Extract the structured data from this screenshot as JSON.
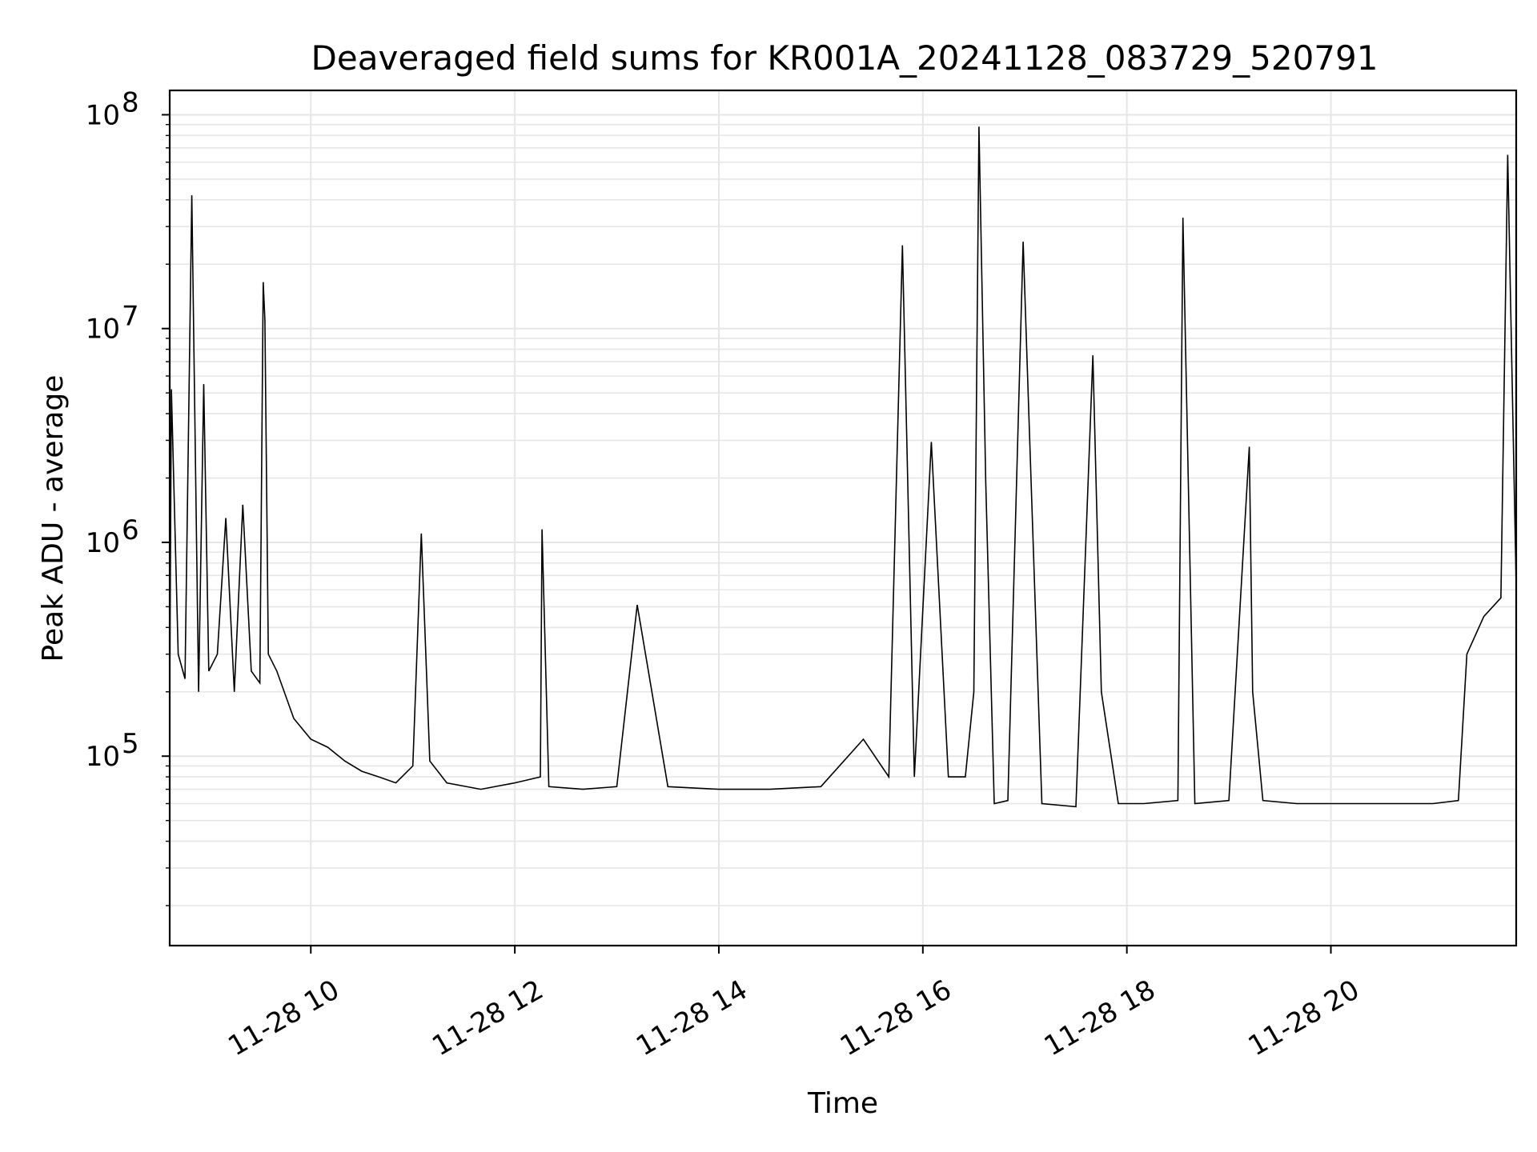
{
  "chart_data": {
    "type": "line",
    "title": "Deaveraged field sums for KR001A_20241128_083729_520791",
    "xlabel": "Time",
    "ylabel": "Peak ADU - average",
    "yscale": "log",
    "ylim": [
      13000,
      130000000
    ],
    "xlim": [
      "2024-11-28 08:37",
      "2024-11-28 21:49"
    ],
    "x_tick_labels": [
      "11-28 10",
      "11-28 12",
      "11-28 14",
      "11-28 16",
      "11-28 18",
      "11-28 20"
    ],
    "x_tick_times": [
      "2024-11-28 10:00",
      "2024-11-28 12:00",
      "2024-11-28 14:00",
      "2024-11-28 16:00",
      "2024-11-28 18:00",
      "2024-11-28 20:00"
    ],
    "y_tick_labels": [
      {
        "base": "10",
        "exp": "5",
        "value": 100000
      },
      {
        "base": "10",
        "exp": "6",
        "value": 1000000
      },
      {
        "base": "10",
        "exp": "7",
        "value": 10000000
      },
      {
        "base": "10",
        "exp": "8",
        "value": 100000000
      }
    ],
    "grid": true,
    "line_color": "#000000",
    "series": [
      {
        "x": [
          "2024-11-28 08:37",
          "2024-11-28 08:38",
          "2024-11-28 08:42",
          "2024-11-28 08:46",
          "2024-11-28 08:50",
          "2024-11-28 08:54",
          "2024-11-28 08:57",
          "2024-11-28 09:00",
          "2024-11-28 09:05",
          "2024-11-28 09:10",
          "2024-11-28 09:15",
          "2024-11-28 09:20",
          "2024-11-28 09:25",
          "2024-11-28 09:30",
          "2024-11-28 09:32",
          "2024-11-28 09:33",
          "2024-11-28 09:35",
          "2024-11-28 09:40",
          "2024-11-28 09:50",
          "2024-11-28 10:00",
          "2024-11-28 10:10",
          "2024-11-28 10:20",
          "2024-11-28 10:30",
          "2024-11-28 10:40",
          "2024-11-28 10:50",
          "2024-11-28 11:00",
          "2024-11-28 11:05",
          "2024-11-28 11:10",
          "2024-11-28 11:20",
          "2024-11-28 11:40",
          "2024-11-28 12:00",
          "2024-11-28 12:15",
          "2024-11-28 12:16",
          "2024-11-28 12:20",
          "2024-11-28 12:40",
          "2024-11-28 13:00",
          "2024-11-28 13:12",
          "2024-11-28 13:30",
          "2024-11-28 14:00",
          "2024-11-28 14:30",
          "2024-11-28 15:00",
          "2024-11-28 15:25",
          "2024-11-28 15:40",
          "2024-11-28 15:48",
          "2024-11-28 15:55",
          "2024-11-28 16:05",
          "2024-11-28 16:15",
          "2024-11-28 16:25",
          "2024-11-28 16:30",
          "2024-11-28 16:33",
          "2024-11-28 16:37",
          "2024-11-28 16:42",
          "2024-11-28 16:50",
          "2024-11-28 16:59",
          "2024-11-28 17:02",
          "2024-11-28 17:10",
          "2024-11-28 17:30",
          "2024-11-28 17:40",
          "2024-11-28 17:45",
          "2024-11-28 17:55",
          "2024-11-28 18:10",
          "2024-11-28 18:30",
          "2024-11-28 18:33",
          "2024-11-28 18:40",
          "2024-11-28 19:00",
          "2024-11-28 19:12",
          "2024-11-28 19:14",
          "2024-11-28 19:20",
          "2024-11-28 19:40",
          "2024-11-28 20:00",
          "2024-11-28 20:30",
          "2024-11-28 21:00",
          "2024-11-28 21:15",
          "2024-11-28 21:20",
          "2024-11-28 21:30",
          "2024-11-28 21:40",
          "2024-11-28 21:44",
          "2024-11-28 21:49"
        ],
        "y": [
          200000,
          5200000,
          300000,
          230000,
          42000000,
          200000,
          5500000,
          250000,
          300000,
          1300000,
          200000,
          1500000,
          250000,
          220000,
          16500000,
          11000000,
          300000,
          250000,
          150000,
          120000,
          110000,
          95000,
          85000,
          80000,
          75000,
          90000,
          1100000,
          95000,
          75000,
          70000,
          75000,
          80000,
          1150000,
          72000,
          70000,
          72000,
          510000,
          72000,
          70000,
          70000,
          72000,
          120000,
          80000,
          24500000,
          80000,
          2950000,
          80000,
          80000,
          200000,
          88000000,
          1900000,
          60000,
          62000,
          25500000,
          4800000,
          60000,
          58000,
          7500000,
          200000,
          60000,
          60000,
          62000,
          33000000,
          60000,
          62000,
          2800000,
          200000,
          62000,
          60000,
          60000,
          60000,
          60000,
          62000,
          300000,
          450000,
          550000,
          65000000,
          620000
        ]
      }
    ]
  }
}
